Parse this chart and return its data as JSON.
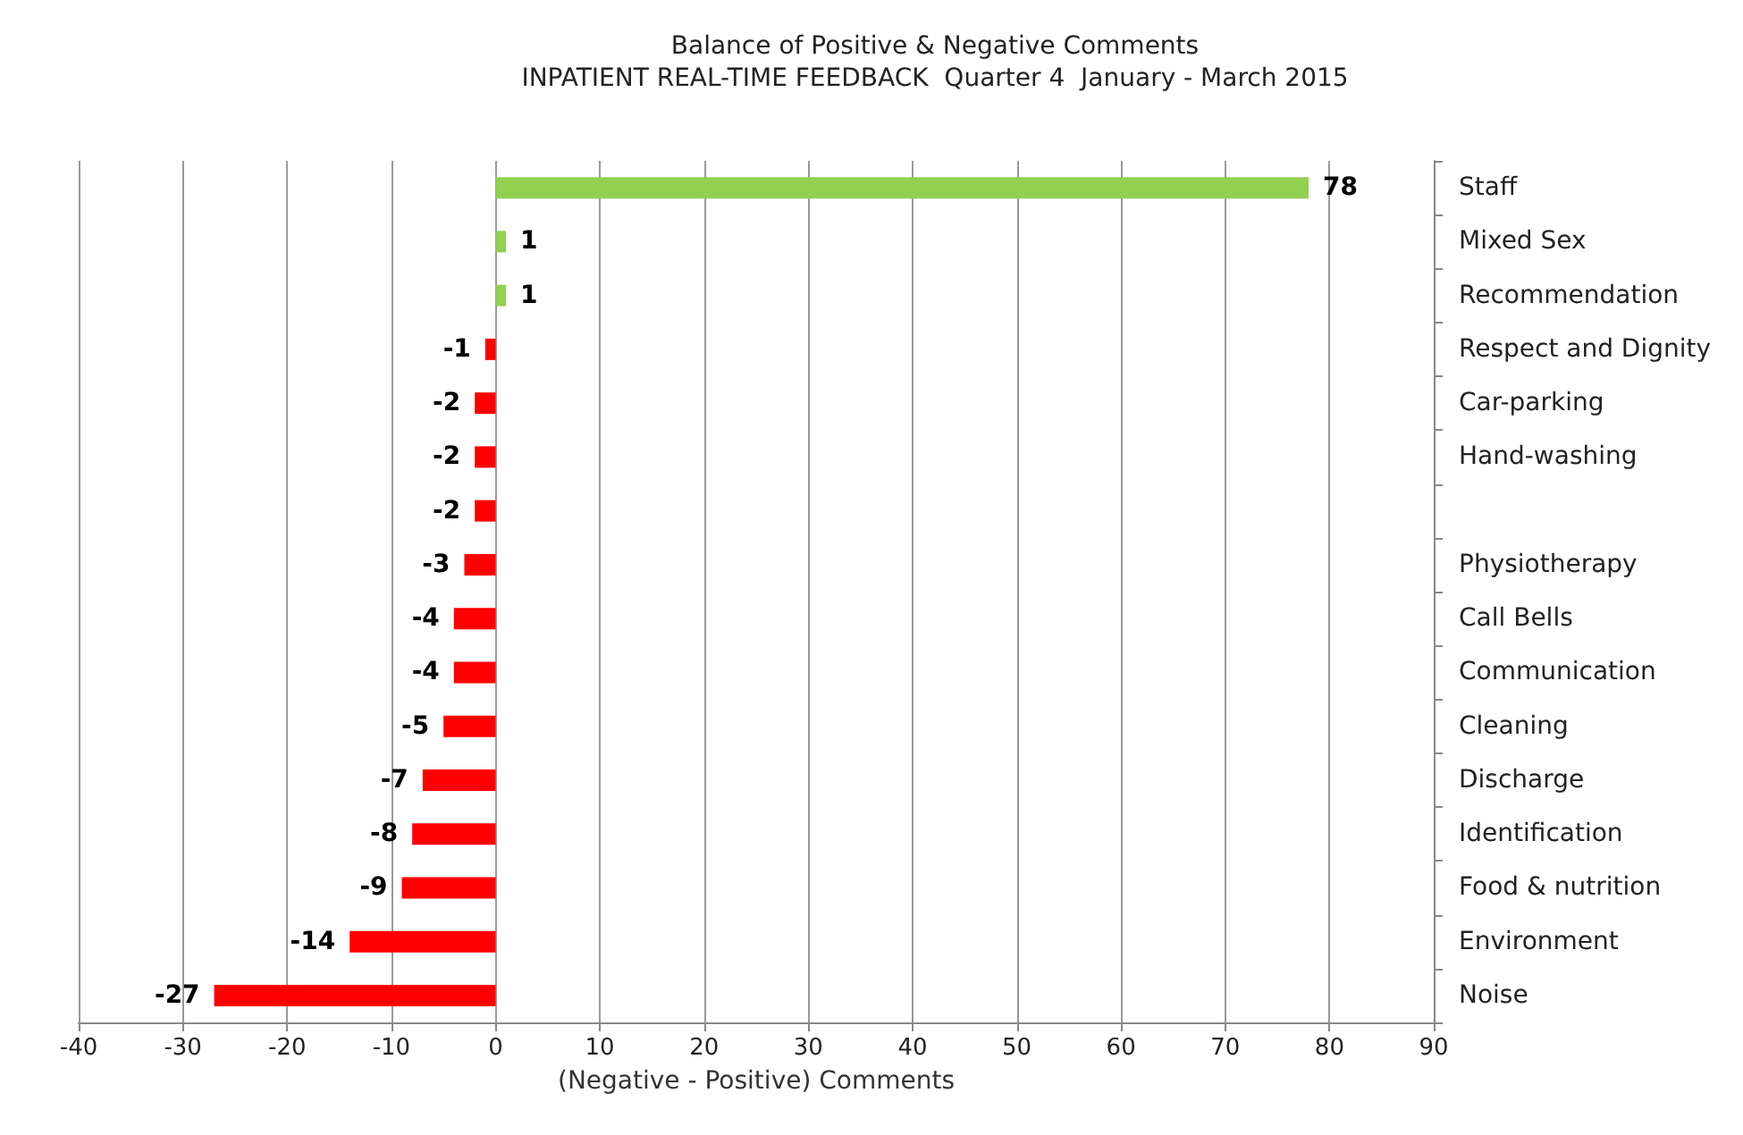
{
  "chart_data": {
    "type": "bar",
    "orientation": "horizontal",
    "title": "Balance of Positive & Negative Comments",
    "subtitle": "INPATIENT REAL-TIME FEEDBACK  Quarter 4  January - March 2015",
    "xlabel": "(Negative - Positive) Comments",
    "categories": [
      "Staff",
      "Mixed Sex",
      "Recommendation",
      "Respect and Dignity",
      "Car-parking",
      "Hand-washing",
      null,
      "Physiotherapy",
      "Call Bells",
      "Communication",
      "Cleaning",
      "Discharge",
      "Identification",
      "Food & nutrition",
      "Environment",
      "Noise"
    ],
    "values": [
      78,
      1,
      1,
      -1,
      -2,
      -2,
      -2,
      -3,
      -4,
      -4,
      -5,
      -7,
      -8,
      -9,
      -14,
      -27
    ],
    "colors": [
      "#92d050",
      "#92d050",
      "#92d050",
      "#ff0000",
      "#ff0000",
      "#ff0000",
      "#ff0000",
      "#ff0000",
      "#ff0000",
      "#ff0000",
      "#ff0000",
      "#ff0000",
      "#ff0000",
      "#ff0000",
      "#ff0000",
      "#ff0000"
    ],
    "xlim": [
      -40,
      90
    ],
    "xticks": [
      -40,
      -30,
      -20,
      -10,
      0,
      10,
      20,
      30,
      40,
      50,
      60,
      70,
      80,
      90
    ],
    "grid": "x",
    "data_labels": true
  }
}
